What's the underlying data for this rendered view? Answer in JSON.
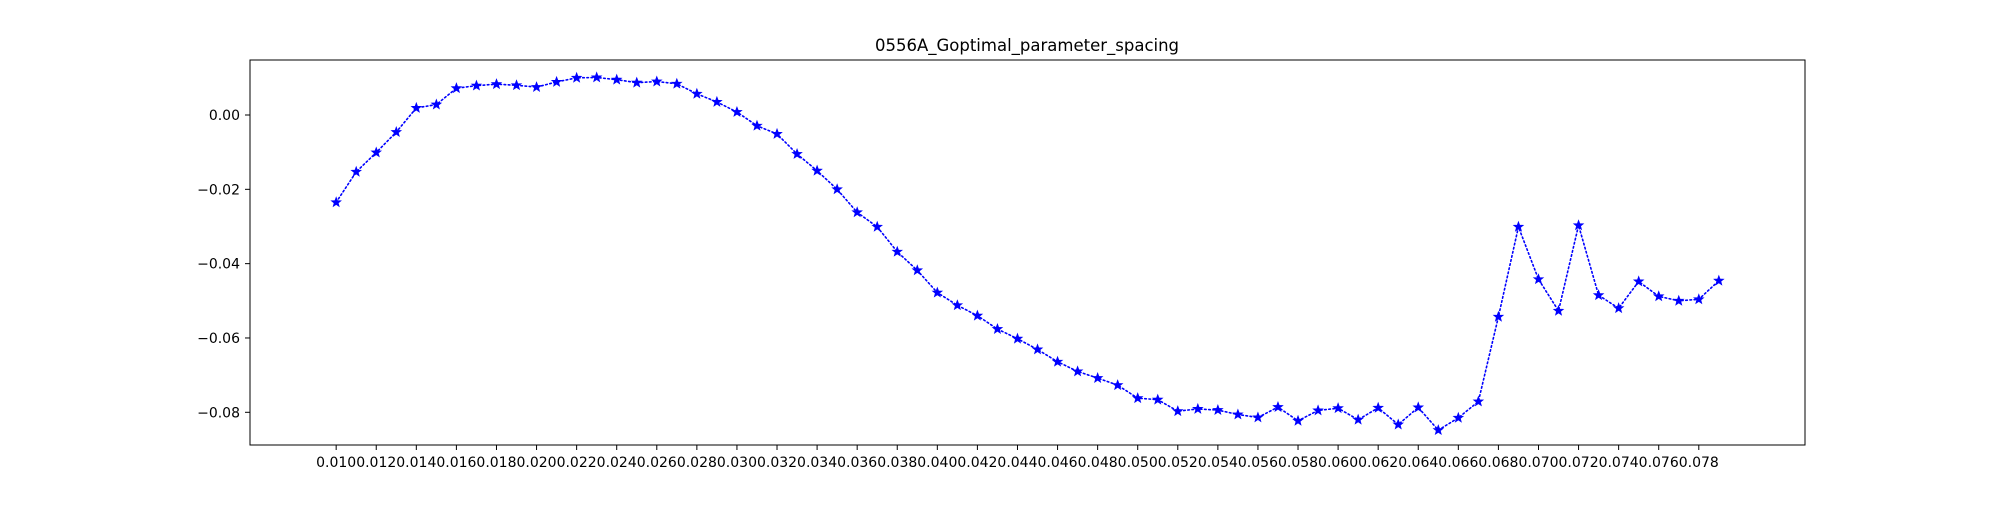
{
  "chart_data": {
    "type": "line",
    "title": "0556A_Goptimal_parameter_spacing",
    "xlabel": "",
    "ylabel": "",
    "xlim": [
      0.0057,
      0.0833
    ],
    "ylim": [
      -0.0888,
      0.0148
    ],
    "x_ticks": [
      0.01,
      0.012,
      0.014,
      0.016,
      0.018,
      0.02,
      0.022,
      0.024,
      0.026,
      0.028,
      0.03,
      0.032,
      0.034,
      0.036,
      0.038,
      0.04,
      0.042,
      0.044,
      0.046,
      0.048,
      0.05,
      0.052,
      0.054,
      0.056,
      0.058,
      0.06,
      0.062,
      0.064,
      0.066,
      0.068,
      0.07,
      0.072,
      0.074,
      0.076,
      0.078
    ],
    "x_tick_labels": [
      "0.010",
      "0.012",
      "0.014",
      "0.016",
      "0.018",
      "0.020",
      "0.022",
      "0.024",
      "0.026",
      "0.028",
      "0.030",
      "0.032",
      "0.034",
      "0.036",
      "0.038",
      "0.040",
      "0.042",
      "0.044",
      "0.046",
      "0.048",
      "0.050",
      "0.052",
      "0.054",
      "0.056",
      "0.058",
      "0.060",
      "0.062",
      "0.064",
      "0.066",
      "0.068",
      "0.070",
      "0.072",
      "0.074",
      "0.076",
      "0.078"
    ],
    "y_ticks": [
      0.0,
      -0.02,
      -0.04,
      -0.06,
      -0.08
    ],
    "y_tick_labels": [
      "0.00",
      "−0.02",
      "−0.04",
      "−0.06",
      "−0.08"
    ],
    "grid": false,
    "legend": "none",
    "series": [
      {
        "color": "#0000ff",
        "line_style": "dotted",
        "marker": "star",
        "x": [
          0.01,
          0.011,
          0.012,
          0.013,
          0.014,
          0.015,
          0.016,
          0.017,
          0.018,
          0.019,
          0.02,
          0.021,
          0.022,
          0.023,
          0.024,
          0.025,
          0.026,
          0.027,
          0.028,
          0.029,
          0.03,
          0.031,
          0.032,
          0.033,
          0.034,
          0.035,
          0.036,
          0.037,
          0.038,
          0.039,
          0.04,
          0.041,
          0.042,
          0.043,
          0.044,
          0.045,
          0.046,
          0.047,
          0.048,
          0.049,
          0.05,
          0.051,
          0.052,
          0.053,
          0.054,
          0.055,
          0.056,
          0.057,
          0.058,
          0.059,
          0.06,
          0.061,
          0.062,
          0.063,
          0.064,
          0.065,
          0.066,
          0.067,
          0.068,
          0.069,
          0.07,
          0.071,
          0.072,
          0.073,
          0.074,
          0.075,
          0.076,
          0.077,
          0.078,
          0.079
        ],
        "y": [
          -0.0235,
          -0.0153,
          -0.0101,
          -0.0046,
          0.0019,
          0.0028,
          0.0072,
          0.0079,
          0.0083,
          0.008,
          0.0075,
          0.0089,
          0.01,
          0.0101,
          0.0095,
          0.0087,
          0.009,
          0.0084,
          0.0057,
          0.0035,
          0.0008,
          -0.0029,
          -0.0051,
          -0.0105,
          -0.015,
          -0.02,
          -0.0262,
          -0.0301,
          -0.0368,
          -0.0418,
          -0.0478,
          -0.0512,
          -0.054,
          -0.0576,
          -0.0602,
          -0.0631,
          -0.0664,
          -0.069,
          -0.0708,
          -0.0727,
          -0.0762,
          -0.0766,
          -0.0797,
          -0.0791,
          -0.0794,
          -0.0806,
          -0.0814,
          -0.0786,
          -0.0823,
          -0.0795,
          -0.0789,
          -0.082,
          -0.0788,
          -0.0833,
          -0.0787,
          -0.0848,
          -0.0815,
          -0.0771,
          -0.0543,
          -0.0301,
          -0.0442,
          -0.0527,
          -0.0297,
          -0.0485,
          -0.052,
          -0.0448,
          -0.0488,
          -0.05,
          -0.0496,
          -0.0446
        ]
      }
    ]
  }
}
